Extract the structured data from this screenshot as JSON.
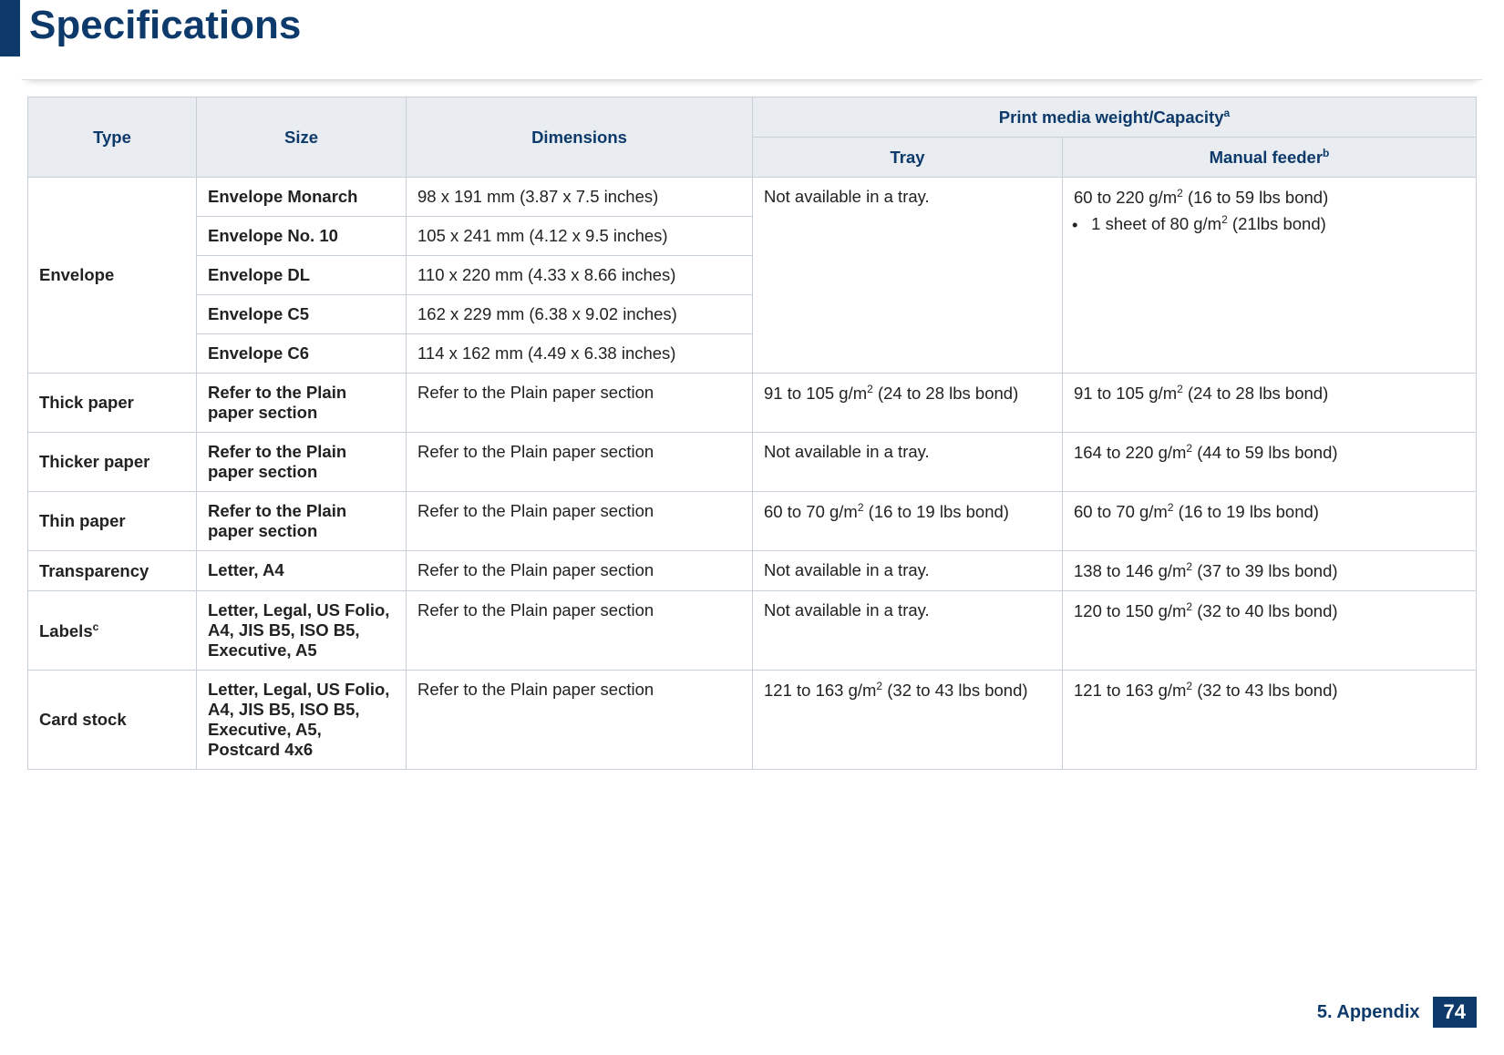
{
  "header": {
    "title": "Specifications"
  },
  "footer": {
    "chapter": "5. Appendix",
    "page": "74"
  },
  "table": {
    "head": {
      "type": "Type",
      "size": "Size",
      "dimensions": "Dimensions",
      "weight_span": "Print media weight/Capacity",
      "weight_sup": "a",
      "tray": "Tray",
      "feeder": "Manual feeder",
      "feeder_sup": "b"
    },
    "envelope": {
      "group": "Envelope",
      "sizes": [
        {
          "name": "Envelope Monarch",
          "dim": "98 x 191 mm (3.87 x 7.5 inches)"
        },
        {
          "name": "Envelope No. 10",
          "dim": "105 x 241 mm (4.12 x 9.5 inches)"
        },
        {
          "name": "Envelope DL",
          "dim": "110 x 220 mm (4.33 x 8.66 inches)"
        },
        {
          "name": "Envelope C5",
          "dim": "162 x 229 mm (6.38 x 9.02 inches)"
        },
        {
          "name": "Envelope C6",
          "dim": "114 x 162 mm (4.49 x 6.38 inches)"
        }
      ],
      "tray": "Not available in a tray.",
      "feeder_line1_a": "60 to 220 g/m",
      "feeder_line1_b": " (16 to 59 lbs bond)",
      "feeder_bullet_a": "1 sheet of 80 g/m",
      "feeder_bullet_b": " (21lbs bond)"
    },
    "rows": [
      {
        "type": "Thick paper",
        "size": "Refer to the Plain paper section",
        "dim": "Refer to the Plain paper section",
        "tray_a": "91 to 105 g/m",
        "tray_b": " (24 to 28 lbs bond)",
        "feed_a": "91 to 105 g/m",
        "feed_b": " (24 to 28 lbs bond)"
      },
      {
        "type": "Thicker paper",
        "size": "Refer to the Plain paper section",
        "dim": "Refer to the Plain paper section",
        "tray_plain": "Not available in a tray.",
        "feed_a": "164 to 220 g/m",
        "feed_b": " (44 to 59 lbs bond)"
      },
      {
        "type": "Thin paper",
        "size": "Refer to the Plain paper section",
        "dim": "Refer to the Plain paper section",
        "tray_a": "60 to 70 g/m",
        "tray_b": " (16 to 19 lbs bond)",
        "feed_a": "60 to 70 g/m",
        "feed_b": " (16 to 19 lbs bond)"
      },
      {
        "type": "Transparency",
        "size": "Letter, A4",
        "dim": "Refer to the Plain paper section",
        "tray_plain": "Not available in a tray.",
        "feed_a": "138 to 146 g/m",
        "feed_b": " (37 to 39 lbs bond)"
      },
      {
        "type_a": "Labels",
        "type_sup": "c",
        "size": "Letter, Legal, US Folio, A4, JIS B5, ISO B5, Executive, A5",
        "dim": "Refer to the Plain paper section",
        "tray_plain": "Not available in a tray.",
        "feed_a": "120 to 150 g/m",
        "feed_b": " (32 to 40 lbs bond)"
      },
      {
        "type": "Card stock",
        "size": "Letter, Legal, US Folio, A4, JIS B5, ISO B5, Executive, A5, Postcard 4x6",
        "dim": "Refer to the Plain paper section",
        "tray_a": "121 to 163 g/m",
        "tray_b": " (32 to 43 lbs bond)",
        "feed_a": "121 to 163 g/m",
        "feed_b": " (32 to 43 lbs bond)"
      }
    ]
  }
}
